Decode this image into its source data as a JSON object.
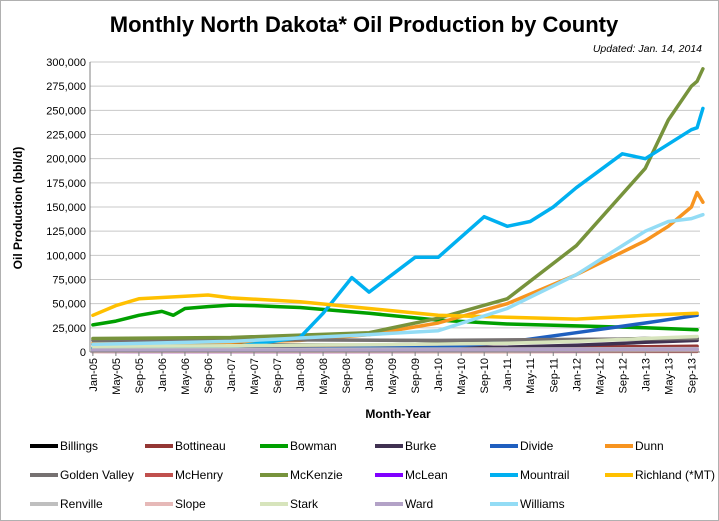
{
  "chart_data": {
    "type": "line",
    "title": "Monthly North Dakota* Oil Production by County",
    "subtitle": "Updated: Jan. 14, 2014",
    "xlabel": "Month-Year",
    "ylabel": "Oil Production (bbl/d)",
    "ylim": [
      0,
      300000
    ],
    "y_ticks": [
      "0",
      "25,000",
      "50,000",
      "75,000",
      "100,000",
      "125,000",
      "150,000",
      "175,000",
      "200,000",
      "225,000",
      "250,000",
      "275,000",
      "300,000"
    ],
    "x_range": [
      "Jan-05",
      "Oct-13"
    ],
    "x_tick_labels": [
      "Jan-05",
      "May-05",
      "Sep-05",
      "Jan-06",
      "May-06",
      "Sep-06",
      "Jan-07",
      "May-07",
      "Sep-07",
      "Jan-08",
      "May-08",
      "Sep-08",
      "Jan-09",
      "May-09",
      "Sep-09",
      "Jan-10",
      "May-10",
      "Sep-10",
      "Jan-11",
      "May-11",
      "Sep-11",
      "Jan-12",
      "May-12",
      "Sep-12",
      "Jan-13",
      "May-13",
      "Sep-13"
    ],
    "grid": "horizontal",
    "legend_position": "bottom",
    "series": [
      {
        "name": "Billings",
        "color": "#000000",
        "points": [
          [
            "Jan-05",
            8000
          ],
          [
            "Jan-07",
            7500
          ],
          [
            "Jan-09",
            7000
          ],
          [
            "Jan-10",
            8500
          ],
          [
            "Jan-11",
            9500
          ],
          [
            "Jan-12",
            12000
          ],
          [
            "Jan-13",
            14000
          ],
          [
            "Oct-13",
            14000
          ]
        ]
      },
      {
        "name": "Bottineau",
        "color": "#943634",
        "points": [
          [
            "Jan-05",
            4500
          ],
          [
            "Jan-09",
            4500
          ],
          [
            "Jan-11",
            5000
          ],
          [
            "Jan-13",
            5500
          ],
          [
            "Oct-13",
            6000
          ]
        ]
      },
      {
        "name": "Bowman",
        "color": "#00a000",
        "points": [
          [
            "Jan-05",
            28000
          ],
          [
            "May-05",
            32000
          ],
          [
            "Sep-05",
            38000
          ],
          [
            "Jan-06",
            42000
          ],
          [
            "Mar-06",
            38000
          ],
          [
            "May-06",
            45000
          ],
          [
            "Sep-06",
            47000
          ],
          [
            "Jan-07",
            48500
          ],
          [
            "May-07",
            48000
          ],
          [
            "Sep-07",
            47000
          ],
          [
            "Jan-08",
            46000
          ],
          [
            "Sep-08",
            42000
          ],
          [
            "Jan-09",
            40000
          ],
          [
            "Jan-10",
            33000
          ],
          [
            "Jan-11",
            29000
          ],
          [
            "Jan-12",
            27000
          ],
          [
            "Jan-13",
            25000
          ],
          [
            "Oct-13",
            23000
          ]
        ]
      },
      {
        "name": "Burke",
        "color": "#403151",
        "points": [
          [
            "Jan-05",
            3000
          ],
          [
            "Jan-09",
            3500
          ],
          [
            "Jan-11",
            5000
          ],
          [
            "Jan-12",
            7000
          ],
          [
            "Jan-13",
            10000
          ],
          [
            "Oct-13",
            12000
          ]
        ]
      },
      {
        "name": "Divide",
        "color": "#1f5fbf",
        "points": [
          [
            "Jan-05",
            2000
          ],
          [
            "Jan-08",
            3000
          ],
          [
            "Jan-10",
            5000
          ],
          [
            "Jan-11",
            10000
          ],
          [
            "Jan-12",
            20000
          ],
          [
            "Jan-13",
            30000
          ],
          [
            "Oct-13",
            38000
          ]
        ]
      },
      {
        "name": "Dunn",
        "color": "#f79420",
        "points": [
          [
            "Jan-05",
            9000
          ],
          [
            "Jan-07",
            10000
          ],
          [
            "Jan-08",
            12000
          ],
          [
            "Jan-09",
            18000
          ],
          [
            "Jan-10",
            30000
          ],
          [
            "Jan-11",
            50000
          ],
          [
            "Jan-12",
            80000
          ],
          [
            "Jan-13",
            115000
          ],
          [
            "May-13",
            130000
          ],
          [
            "Sep-13",
            150000
          ],
          [
            "Oct-13",
            165000
          ],
          [
            "Nov-13",
            155000
          ]
        ]
      },
      {
        "name": "Golden Valley",
        "color": "#767171",
        "points": [
          [
            "Jan-05",
            12000
          ],
          [
            "Jan-08",
            12500
          ],
          [
            "Jan-10",
            12000
          ],
          [
            "Jan-12",
            13000
          ],
          [
            "Oct-13",
            14000
          ]
        ]
      },
      {
        "name": "McHenry",
        "color": "#c0504d",
        "points": [
          [
            "Jan-05",
            300
          ],
          [
            "Oct-13",
            600
          ]
        ]
      },
      {
        "name": "McKenzie",
        "color": "#77933c",
        "points": [
          [
            "Jan-05",
            14000
          ],
          [
            "Jan-07",
            15000
          ],
          [
            "Jan-09",
            20000
          ],
          [
            "Jan-10",
            35000
          ],
          [
            "Jan-11",
            55000
          ],
          [
            "Jan-12",
            110000
          ],
          [
            "Jan-13",
            190000
          ],
          [
            "May-13",
            240000
          ],
          [
            "Sep-13",
            275000
          ],
          [
            "Oct-13",
            280000
          ],
          [
            "Nov-13",
            293000
          ]
        ]
      },
      {
        "name": "McLean",
        "color": "#8000ff",
        "points": [
          [
            "Jan-05",
            200
          ],
          [
            "Jan-12",
            1000
          ],
          [
            "Oct-13",
            2500
          ]
        ]
      },
      {
        "name": "Mountrail",
        "color": "#00b0f0",
        "points": [
          [
            "Jan-05",
            4000
          ],
          [
            "Jan-07",
            5000
          ],
          [
            "Jan-08",
            15000
          ],
          [
            "May-08",
            40000
          ],
          [
            "Oct-08",
            77000
          ],
          [
            "Jan-09",
            62000
          ],
          [
            "Sep-09",
            98000
          ],
          [
            "Jan-10",
            98000
          ],
          [
            "Sep-10",
            140000
          ],
          [
            "Jan-11",
            130000
          ],
          [
            "May-11",
            135000
          ],
          [
            "Sep-11",
            150000
          ],
          [
            "Jan-12",
            170000
          ],
          [
            "Sep-12",
            205000
          ],
          [
            "Jan-13",
            200000
          ],
          [
            "Sep-13",
            230000
          ],
          [
            "Oct-13",
            232000
          ],
          [
            "Nov-13",
            252000
          ]
        ]
      },
      {
        "name": "Richland (*MT)",
        "color": "#ffc000",
        "points": [
          [
            "Jan-05",
            38000
          ],
          [
            "May-05",
            48000
          ],
          [
            "Sep-05",
            55000
          ],
          [
            "Sep-06",
            59000
          ],
          [
            "Jan-07",
            56000
          ],
          [
            "Jan-08",
            52000
          ],
          [
            "Jan-09",
            45000
          ],
          [
            "Jan-10",
            38000
          ],
          [
            "Jan-11",
            36000
          ],
          [
            "Jan-12",
            34000
          ],
          [
            "Jan-13",
            38000
          ],
          [
            "Oct-13",
            40000
          ]
        ]
      },
      {
        "name": "Renville",
        "color": "#bfbfbf",
        "points": [
          [
            "Jan-05",
            2500
          ],
          [
            "Jan-10",
            3000
          ],
          [
            "Oct-13",
            3500
          ]
        ]
      },
      {
        "name": "Slope",
        "color": "#e6b9b8",
        "points": [
          [
            "Jan-05",
            300
          ],
          [
            "Jan-11",
            700
          ],
          [
            "Oct-13",
            1500
          ]
        ]
      },
      {
        "name": "Stark",
        "color": "#d7e4bc",
        "points": [
          [
            "Jan-05",
            6000
          ],
          [
            "Jan-07",
            6500
          ],
          [
            "Jan-09",
            7500
          ],
          [
            "Jan-11",
            9000
          ],
          [
            "Jan-12",
            11000
          ],
          [
            "Jan-13",
            14000
          ],
          [
            "Oct-13",
            16000
          ]
        ]
      },
      {
        "name": "Ward",
        "color": "#b3a2c7",
        "points": [
          [
            "Jan-05",
            1500
          ],
          [
            "Jan-09",
            2000
          ],
          [
            "Oct-13",
            3000
          ]
        ]
      },
      {
        "name": "Williams",
        "color": "#93dcf5",
        "points": [
          [
            "Jan-05",
            8000
          ],
          [
            "Jan-07",
            11000
          ],
          [
            "Jan-09",
            18000
          ],
          [
            "Jan-10",
            22000
          ],
          [
            "Jan-11",
            45000
          ],
          [
            "Jan-12",
            80000
          ],
          [
            "Jan-13",
            125000
          ],
          [
            "May-13",
            135000
          ],
          [
            "Sep-13",
            138000
          ],
          [
            "Nov-13",
            142000
          ]
        ]
      }
    ]
  }
}
